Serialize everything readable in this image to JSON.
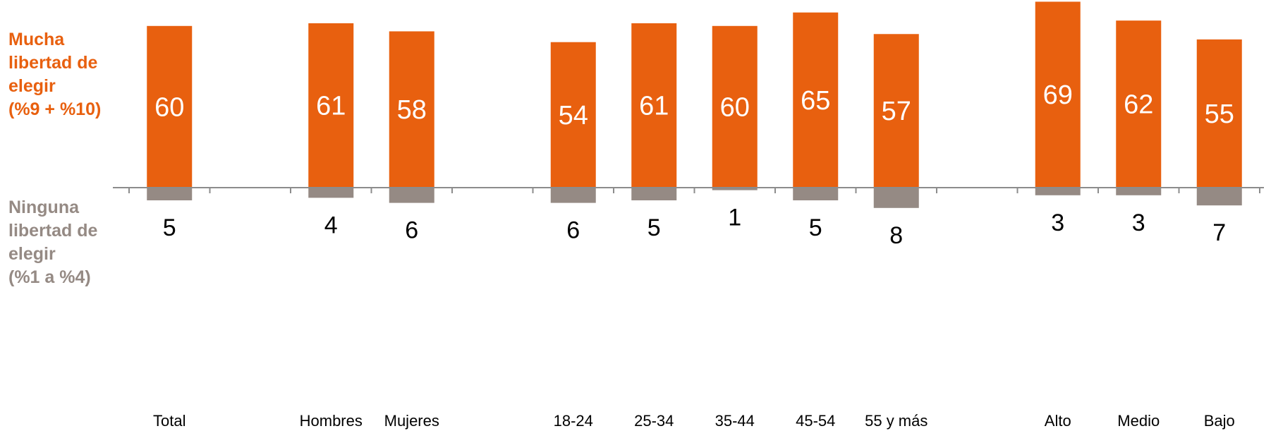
{
  "legend": {
    "positive": "Mucha\nlibertad de\nelegir\n(%9 + %10)",
    "negative": "Ninguna\nlibertad de\nelegir\n(%1 a %4)"
  },
  "colors": {
    "positive": "#E8600F",
    "negative": "#958A84",
    "axis": "#8C8C8C"
  },
  "chart_data": {
    "type": "bar",
    "categories": [
      "Total",
      "",
      "Hombres",
      "Mujeres",
      "",
      "18-24",
      "25-34",
      "35-44",
      "45-54",
      "55 y más",
      "",
      "Alto",
      "Medio",
      "Bajo"
    ],
    "series": [
      {
        "name": "Mucha libertad de elegir (%9 + %10)",
        "values": [
          60,
          null,
          61,
          58,
          null,
          54,
          61,
          60,
          65,
          57,
          null,
          69,
          62,
          55
        ]
      },
      {
        "name": "Ninguna libertad de elegir (%1 a %4)",
        "values": [
          5,
          null,
          4,
          6,
          null,
          6,
          5,
          1,
          5,
          8,
          null,
          3,
          3,
          7
        ]
      }
    ]
  }
}
